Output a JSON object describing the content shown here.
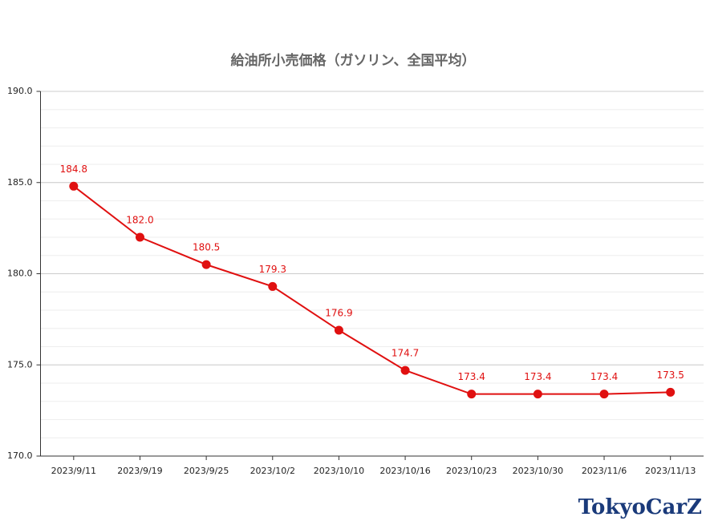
{
  "chart_data": {
    "type": "line",
    "title": "給油所小売価格（ガソリン、全国平均）",
    "categories": [
      "2023/9/11",
      "2023/9/19",
      "2023/9/25",
      "2023/10/2",
      "2023/10/10",
      "2023/10/16",
      "2023/10/23",
      "2023/10/30",
      "2023/11/6",
      "2023/11/13"
    ],
    "values": [
      184.8,
      182.0,
      180.5,
      179.3,
      176.9,
      174.7,
      173.4,
      173.4,
      173.4,
      173.5
    ],
    "value_labels": [
      "184.8",
      "182.0",
      "180.5",
      "179.3",
      "176.9",
      "174.7",
      "173.4",
      "173.4",
      "173.4",
      "173.5"
    ],
    "color": "#e01010",
    "ylim": [
      170,
      190
    ],
    "yticks": [
      {
        "value": 170,
        "label": "170.0"
      },
      {
        "value": 175,
        "label": "175.0"
      },
      {
        "value": 180,
        "label": "180.0"
      },
      {
        "value": 185,
        "label": "185.0"
      },
      {
        "value": 190,
        "label": "190.0"
      }
    ],
    "grid": true,
    "minor_grid_step": 1,
    "watermark": "TokyoCarZ"
  }
}
